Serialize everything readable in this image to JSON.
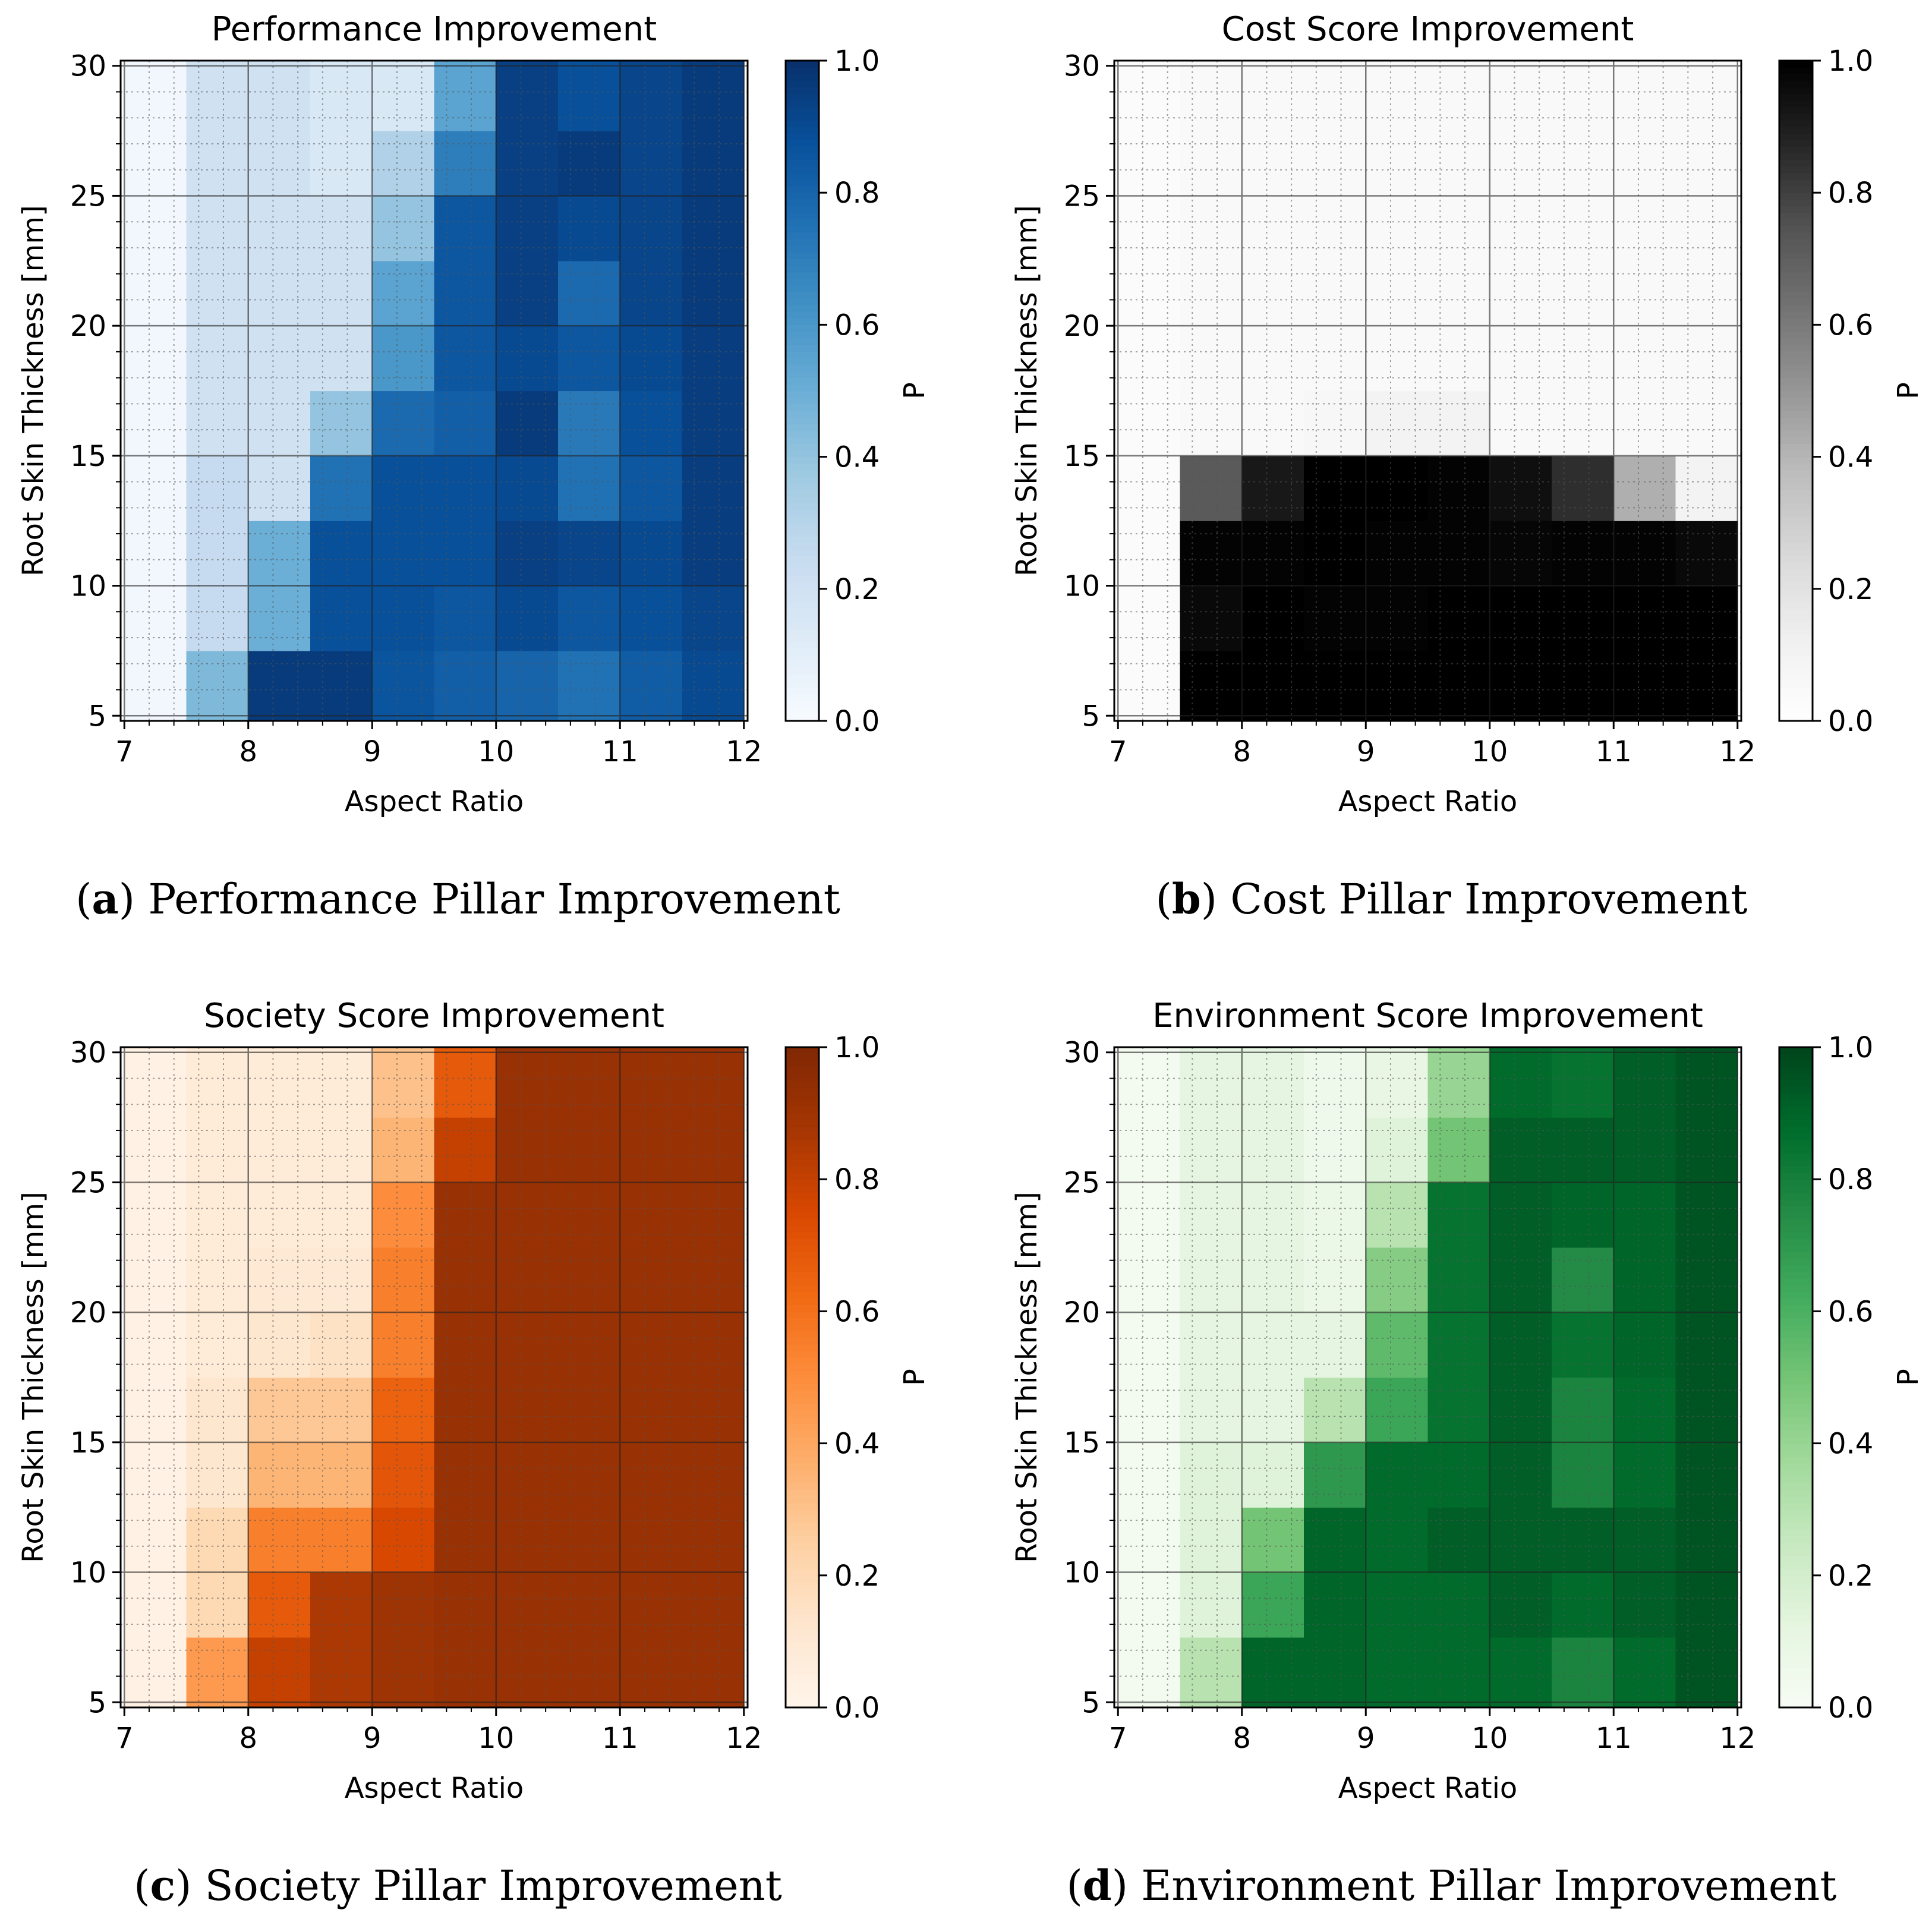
{
  "panels": [
    {
      "caption_letter": "a",
      "caption_text": "Performance Pillar Improvement",
      "colormap": "blues",
      "chart_data": {
        "type": "heatmap",
        "title": "Performance Improvement",
        "xlabel": "Aspect Ratio",
        "ylabel": "Root Skin Thickness [mm]",
        "colorbar_label": "P",
        "x_cells": [
          7,
          7.5,
          8,
          8.5,
          9,
          9.5,
          10,
          10.5,
          11,
          11.5
        ],
        "y_cells": [
          5,
          7.5,
          10,
          12.5,
          15,
          17.5,
          20,
          22.5,
          25,
          27.5
        ],
        "cell_width": 0.5,
        "y_cell_edges": [
          4.8,
          7.5,
          10,
          12.5,
          15,
          17.5,
          20,
          22.5,
          25,
          27.5,
          30.2
        ],
        "xlim": [
          6.97,
          12.03
        ],
        "ylim": [
          4.8,
          30.2
        ],
        "xticks": [
          "7",
          "8",
          "9",
          "10",
          "11",
          "12"
        ],
        "yticks": [
          "5",
          "10",
          "15",
          "20",
          "25",
          "30"
        ],
        "colorbar_ticks": [
          "0.0",
          "0.2",
          "0.4",
          "0.6",
          "0.8",
          "1.0"
        ],
        "vmin": 0.0,
        "vmax": 1.0,
        "values": [
          [
            0.03,
            0.45,
            0.96,
            0.96,
            0.86,
            0.82,
            0.8,
            0.75,
            0.83,
            0.9
          ],
          [
            0.03,
            0.25,
            0.5,
            0.88,
            0.88,
            0.85,
            0.9,
            0.85,
            0.88,
            0.92
          ],
          [
            0.03,
            0.25,
            0.5,
            0.88,
            0.88,
            0.88,
            0.94,
            0.92,
            0.9,
            0.95
          ],
          [
            0.03,
            0.25,
            0.2,
            0.75,
            0.88,
            0.88,
            0.9,
            0.75,
            0.85,
            0.95
          ],
          [
            0.03,
            0.2,
            0.2,
            0.4,
            0.78,
            0.82,
            0.96,
            0.72,
            0.88,
            0.95
          ],
          [
            0.03,
            0.2,
            0.2,
            0.2,
            0.6,
            0.85,
            0.9,
            0.85,
            0.9,
            0.95
          ],
          [
            0.03,
            0.2,
            0.2,
            0.2,
            0.55,
            0.85,
            0.94,
            0.78,
            0.92,
            0.96
          ],
          [
            0.03,
            0.2,
            0.2,
            0.2,
            0.4,
            0.85,
            0.94,
            0.9,
            0.92,
            0.96
          ],
          [
            0.03,
            0.2,
            0.2,
            0.15,
            0.32,
            0.7,
            0.94,
            0.96,
            0.92,
            0.96
          ],
          [
            0.03,
            0.2,
            0.2,
            0.15,
            0.15,
            0.55,
            0.94,
            0.88,
            0.92,
            0.96
          ]
        ]
      }
    },
    {
      "caption_letter": "b",
      "caption_text": "Cost Pillar Improvement",
      "colormap": "greys",
      "chart_data": {
        "type": "heatmap",
        "title": "Cost Score Improvement",
        "xlabel": "Aspect Ratio",
        "ylabel": "Root Skin Thickness [mm]",
        "colorbar_label": "P",
        "x_cells": [
          7,
          7.5,
          8,
          8.5,
          9,
          9.5,
          10,
          10.5,
          11,
          11.5
        ],
        "y_cells": [
          5,
          7.5,
          10,
          12.5,
          15,
          17.5,
          20,
          22.5,
          25,
          27.5
        ],
        "cell_width": 0.5,
        "y_cell_edges": [
          4.8,
          7.5,
          10,
          12.5,
          15,
          17.5,
          20,
          22.5,
          25,
          27.5,
          30.2
        ],
        "xlim": [
          6.97,
          12.03
        ],
        "ylim": [
          4.8,
          30.2
        ],
        "xticks": [
          "7",
          "8",
          "9",
          "10",
          "11",
          "12"
        ],
        "yticks": [
          "5",
          "10",
          "15",
          "20",
          "25",
          "30"
        ],
        "colorbar_ticks": [
          "0.0",
          "0.2",
          "0.4",
          "0.6",
          "0.8",
          "1.0"
        ],
        "vmin": 0.0,
        "vmax": 1.0,
        "values": [
          [
            0.03,
            1.0,
            1.0,
            1.0,
            1.0,
            1.0,
            1.0,
            1.0,
            1.0,
            1.0
          ],
          [
            0.03,
            0.97,
            1.0,
            0.99,
            0.99,
            1.0,
            1.0,
            1.0,
            1.0,
            1.0
          ],
          [
            0.03,
            0.99,
            0.99,
            1.0,
            0.99,
            0.99,
            0.98,
            0.99,
            0.99,
            0.97
          ],
          [
            0.03,
            0.72,
            0.92,
            1.0,
            1.0,
            0.99,
            0.95,
            0.85,
            0.42,
            0.1
          ],
          [
            0.03,
            0.05,
            0.05,
            0.07,
            0.1,
            0.1,
            0.05,
            0.05,
            0.05,
            0.05
          ],
          [
            0.03,
            0.05,
            0.05,
            0.05,
            0.05,
            0.05,
            0.05,
            0.05,
            0.05,
            0.05
          ],
          [
            0.03,
            0.05,
            0.05,
            0.05,
            0.05,
            0.05,
            0.05,
            0.05,
            0.05,
            0.05
          ],
          [
            0.03,
            0.05,
            0.05,
            0.05,
            0.05,
            0.05,
            0.05,
            0.05,
            0.05,
            0.05
          ],
          [
            0.03,
            0.05,
            0.05,
            0.05,
            0.05,
            0.05,
            0.05,
            0.05,
            0.05,
            0.05
          ],
          [
            0.03,
            0.05,
            0.05,
            0.05,
            0.05,
            0.05,
            0.05,
            0.05,
            0.05,
            0.05
          ]
        ]
      }
    },
    {
      "caption_letter": "c",
      "caption_text": "Society Pillar Improvement",
      "colormap": "oranges",
      "chart_data": {
        "type": "heatmap",
        "title": "Society Score Improvement",
        "xlabel": "Aspect Ratio",
        "ylabel": "Root Skin Thickness [mm]",
        "colorbar_label": "P",
        "x_cells": [
          7,
          7.5,
          8,
          8.5,
          9,
          9.5,
          10,
          10.5,
          11,
          11.5
        ],
        "y_cells": [
          5,
          7.5,
          10,
          12.5,
          15,
          17.5,
          20,
          22.5,
          25,
          27.5
        ],
        "cell_width": 0.5,
        "y_cell_edges": [
          4.8,
          7.5,
          10,
          12.5,
          15,
          17.5,
          20,
          22.5,
          25,
          27.5,
          30.2
        ],
        "xlim": [
          6.97,
          12.03
        ],
        "ylim": [
          4.8,
          30.2
        ],
        "xticks": [
          "7",
          "8",
          "9",
          "10",
          "11",
          "12"
        ],
        "yticks": [
          "5",
          "10",
          "15",
          "20",
          "25",
          "30"
        ],
        "colorbar_ticks": [
          "0.0",
          "0.2",
          "0.4",
          "0.6",
          "0.8",
          "1.0"
        ],
        "vmin": 0.0,
        "vmax": 1.0,
        "values": [
          [
            0.03,
            0.45,
            0.8,
            0.86,
            0.9,
            0.92,
            0.92,
            0.92,
            0.92,
            0.92
          ],
          [
            0.03,
            0.2,
            0.68,
            0.86,
            0.9,
            0.92,
            0.92,
            0.92,
            0.92,
            0.92
          ],
          [
            0.03,
            0.2,
            0.55,
            0.55,
            0.75,
            0.92,
            0.92,
            0.92,
            0.92,
            0.92
          ],
          [
            0.03,
            0.12,
            0.35,
            0.35,
            0.7,
            0.92,
            0.92,
            0.92,
            0.92,
            0.92
          ],
          [
            0.03,
            0.12,
            0.28,
            0.28,
            0.65,
            0.92,
            0.92,
            0.92,
            0.92,
            0.92
          ],
          [
            0.03,
            0.08,
            0.12,
            0.15,
            0.55,
            0.92,
            0.92,
            0.92,
            0.92,
            0.92
          ],
          [
            0.03,
            0.08,
            0.1,
            0.1,
            0.55,
            0.92,
            0.92,
            0.92,
            0.92,
            0.92
          ],
          [
            0.03,
            0.08,
            0.08,
            0.08,
            0.5,
            0.92,
            0.92,
            0.92,
            0.92,
            0.92
          ],
          [
            0.03,
            0.08,
            0.08,
            0.08,
            0.35,
            0.8,
            0.92,
            0.92,
            0.92,
            0.92
          ],
          [
            0.03,
            0.08,
            0.08,
            0.08,
            0.3,
            0.68,
            0.92,
            0.92,
            0.92,
            0.92
          ]
        ]
      }
    },
    {
      "caption_letter": "d",
      "caption_text": "Environment Pillar Improvement",
      "colormap": "greens",
      "chart_data": {
        "type": "heatmap",
        "title": "Environment Score Improvement",
        "xlabel": "Aspect Ratio",
        "ylabel": "Root Skin Thickness [mm]",
        "colorbar_label": "P",
        "x_cells": [
          7,
          7.5,
          8,
          8.5,
          9,
          9.5,
          10,
          10.5,
          11,
          11.5
        ],
        "y_cells": [
          5,
          7.5,
          10,
          12.5,
          15,
          17.5,
          20,
          22.5,
          25,
          27.5
        ],
        "cell_width": 0.5,
        "y_cell_edges": [
          4.8,
          7.5,
          10,
          12.5,
          15,
          17.5,
          20,
          22.5,
          25,
          27.5,
          30.2
        ],
        "xlim": [
          6.97,
          12.03
        ],
        "ylim": [
          4.8,
          30.2
        ],
        "xticks": [
          "7",
          "8",
          "9",
          "10",
          "11",
          "12"
        ],
        "yticks": [
          "5",
          "10",
          "15",
          "20",
          "25",
          "30"
        ],
        "colorbar_ticks": [
          "0.0",
          "0.2",
          "0.4",
          "0.6",
          "0.8",
          "1.0"
        ],
        "vmin": 0.0,
        "vmax": 1.0,
        "values": [
          [
            0.03,
            0.3,
            0.9,
            0.9,
            0.88,
            0.88,
            0.88,
            0.78,
            0.88,
            0.95
          ],
          [
            0.03,
            0.15,
            0.65,
            0.9,
            0.88,
            0.88,
            0.92,
            0.88,
            0.92,
            0.95
          ],
          [
            0.03,
            0.15,
            0.5,
            0.9,
            0.88,
            0.92,
            0.92,
            0.92,
            0.92,
            0.95
          ],
          [
            0.03,
            0.15,
            0.15,
            0.7,
            0.88,
            0.88,
            0.92,
            0.78,
            0.88,
            0.95
          ],
          [
            0.03,
            0.12,
            0.12,
            0.3,
            0.65,
            0.85,
            0.92,
            0.78,
            0.88,
            0.95
          ],
          [
            0.03,
            0.12,
            0.12,
            0.12,
            0.55,
            0.85,
            0.92,
            0.85,
            0.9,
            0.95
          ],
          [
            0.03,
            0.12,
            0.12,
            0.08,
            0.45,
            0.85,
            0.92,
            0.75,
            0.9,
            0.95
          ],
          [
            0.03,
            0.12,
            0.12,
            0.08,
            0.3,
            0.85,
            0.92,
            0.9,
            0.9,
            0.95
          ],
          [
            0.03,
            0.12,
            0.12,
            0.06,
            0.15,
            0.5,
            0.92,
            0.92,
            0.92,
            0.95
          ],
          [
            0.03,
            0.12,
            0.12,
            0.06,
            0.1,
            0.4,
            0.88,
            0.85,
            0.92,
            0.95
          ]
        ]
      }
    }
  ],
  "colormaps": {
    "blues": [
      "#f7fbff",
      "#deebf7",
      "#c6dbef",
      "#9ecae1",
      "#6baed6",
      "#4292c6",
      "#2171b5",
      "#08519c",
      "#08306b"
    ],
    "greys": [
      "#ffffff",
      "#f0f0f0",
      "#d9d9d9",
      "#bdbdbd",
      "#969696",
      "#737373",
      "#525252",
      "#252525",
      "#000000"
    ],
    "oranges": [
      "#fff5eb",
      "#fee6ce",
      "#fdd0a2",
      "#fdae6b",
      "#fd8d3c",
      "#f16913",
      "#d94801",
      "#a63603",
      "#7f2704"
    ],
    "greens": [
      "#f7fcf5",
      "#e5f5e0",
      "#c7e9c0",
      "#a1d99b",
      "#74c476",
      "#41ab5d",
      "#238b45",
      "#006d2c",
      "#00441b"
    ]
  }
}
